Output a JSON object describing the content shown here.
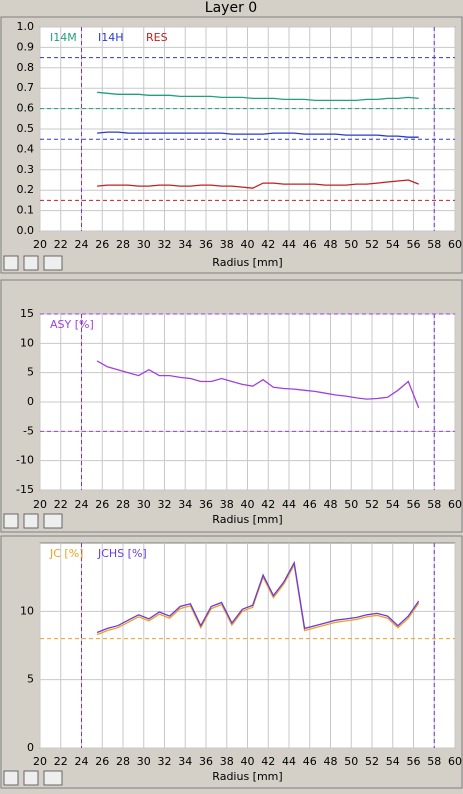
{
  "title": "Layer 0",
  "chart_data": [
    {
      "type": "line",
      "xlabel": "Radius [mm]",
      "xlim": [
        20,
        60
      ],
      "xticks": [
        20,
        22,
        24,
        26,
        28,
        30,
        32,
        34,
        36,
        38,
        40,
        42,
        44,
        46,
        48,
        50,
        52,
        54,
        56,
        58,
        60
      ],
      "ylim": [
        0,
        1
      ],
      "yticks": [
        {
          "value": 0,
          "label": "0.0"
        },
        {
          "value": 0.1,
          "label": "0.1"
        },
        {
          "value": 0.2,
          "label": "0.2"
        },
        {
          "value": 0.3,
          "label": "0.3"
        },
        {
          "value": 0.4,
          "label": "0.4"
        },
        {
          "value": 0.5,
          "label": "0.5"
        },
        {
          "value": 0.6,
          "label": "0.6"
        },
        {
          "value": 0.7,
          "label": "0.7"
        },
        {
          "value": 0.8,
          "label": "0.8"
        },
        {
          "value": 0.9,
          "label": "0.9"
        },
        {
          "value": 1,
          "label": "1.0"
        }
      ],
      "grid": true,
      "vlines": [
        24,
        58
      ],
      "vline_color": "#7b2fd8",
      "hlines": [
        {
          "value": 0.85,
          "color": "#2a3ad0"
        },
        {
          "value": 0.6,
          "color": "#20a080"
        },
        {
          "value": 0.45,
          "color": "#2a3ad0"
        },
        {
          "value": 0.15,
          "color": "#c02020"
        }
      ],
      "x": [
        25.5,
        26.5,
        27.5,
        28.5,
        29.5,
        30.5,
        31.5,
        32.5,
        33.5,
        34.5,
        35.5,
        36.5,
        37.5,
        38.5,
        39.5,
        40.5,
        41.5,
        42.5,
        43.5,
        44.5,
        45.5,
        46.5,
        47.5,
        48.5,
        49.5,
        50.5,
        51.5,
        52.5,
        53.5,
        54.5,
        55.5,
        56.5
      ],
      "series": [
        {
          "name": "I14M",
          "color": "#20a080",
          "values": [
            0.68,
            0.675,
            0.67,
            0.67,
            0.67,
            0.665,
            0.665,
            0.665,
            0.66,
            0.66,
            0.66,
            0.66,
            0.655,
            0.655,
            0.655,
            0.65,
            0.65,
            0.65,
            0.645,
            0.645,
            0.645,
            0.64,
            0.64,
            0.64,
            0.64,
            0.64,
            0.645,
            0.645,
            0.65,
            0.65,
            0.655,
            0.65
          ]
        },
        {
          "name": "I14H",
          "color": "#2a3ad0",
          "values": [
            0.48,
            0.485,
            0.485,
            0.48,
            0.48,
            0.48,
            0.48,
            0.48,
            0.48,
            0.48,
            0.48,
            0.48,
            0.48,
            0.475,
            0.475,
            0.475,
            0.475,
            0.48,
            0.48,
            0.48,
            0.475,
            0.475,
            0.475,
            0.475,
            0.47,
            0.47,
            0.47,
            0.47,
            0.465,
            0.465,
            0.46,
            0.46
          ]
        },
        {
          "name": "RES",
          "color": "#c02020",
          "values": [
            0.22,
            0.225,
            0.225,
            0.225,
            0.22,
            0.22,
            0.225,
            0.225,
            0.22,
            0.22,
            0.225,
            0.225,
            0.22,
            0.22,
            0.215,
            0.21,
            0.235,
            0.235,
            0.23,
            0.23,
            0.23,
            0.23,
            0.225,
            0.225,
            0.225,
            0.23,
            0.23,
            0.235,
            0.24,
            0.245,
            0.25,
            0.23
          ]
        }
      ]
    },
    {
      "type": "line",
      "xlabel": "Radius [mm]",
      "xlim": [
        20,
        60
      ],
      "xticks": [
        20,
        22,
        24,
        26,
        28,
        30,
        32,
        34,
        36,
        38,
        40,
        42,
        44,
        46,
        48,
        50,
        52,
        54,
        56,
        58,
        60
      ],
      "ylim": [
        -15,
        15
      ],
      "yticks": [
        -15,
        -10,
        -5,
        0,
        5,
        10,
        15
      ],
      "grid": true,
      "vlines": [
        24,
        58
      ],
      "vline_color": "#7b2fd8",
      "hlines": [
        {
          "value": 15,
          "color": "#a040e0"
        },
        {
          "value": -5,
          "color": "#a040e0"
        }
      ],
      "x": [
        25.5,
        26.5,
        27.5,
        28.5,
        29.5,
        30.5,
        31.5,
        32.5,
        33.5,
        34.5,
        35.5,
        36.5,
        37.5,
        38.5,
        39.5,
        40.5,
        41.5,
        42.5,
        43.5,
        44.5,
        45.5,
        46.5,
        47.5,
        48.5,
        49.5,
        50.5,
        51.5,
        52.5,
        53.5,
        54.5,
        55.5,
        56.5
      ],
      "series": [
        {
          "name": "ASY [%]",
          "color": "#a040e0",
          "values": [
            7,
            6,
            5.5,
            5,
            4.5,
            5.5,
            4.5,
            4.5,
            4.2,
            4,
            3.5,
            3.5,
            4,
            3.5,
            3,
            2.7,
            3.8,
            2.5,
            2.3,
            2.2,
            2,
            1.8,
            1.5,
            1.2,
            1,
            0.7,
            0.5,
            0.6,
            0.8,
            2,
            3.5,
            -1
          ]
        }
      ]
    },
    {
      "type": "line",
      "xlabel": "Radius [mm]",
      "xlim": [
        20,
        60
      ],
      "xticks": [
        20,
        22,
        24,
        26,
        28,
        30,
        32,
        34,
        36,
        38,
        40,
        42,
        44,
        46,
        48,
        50,
        52,
        54,
        56,
        58,
        60
      ],
      "ylim": [
        0,
        15
      ],
      "yticks": [
        0,
        5,
        10
      ],
      "grid": true,
      "vlines": [
        24,
        58
      ],
      "vline_color": "#7b2fd8",
      "hlines": [
        {
          "value": 8,
          "color": "#f0a020"
        }
      ],
      "x": [
        25.5,
        26.5,
        27.5,
        28.5,
        29.5,
        30.5,
        31.5,
        32.5,
        33.5,
        34.5,
        35.5,
        36.5,
        37.5,
        38.5,
        39.5,
        40.5,
        41.5,
        42.5,
        43.5,
        44.5,
        45.5,
        46.5,
        47.5,
        48.5,
        49.5,
        50.5,
        51.5,
        52.5,
        53.5,
        54.5,
        55.5,
        56.5
      ],
      "series": [
        {
          "name": "JC [%]",
          "color": "#f0a020",
          "values": [
            8.3,
            8.6,
            8.8,
            9.2,
            9.6,
            9.3,
            9.8,
            9.5,
            10.2,
            10.4,
            8.8,
            10.2,
            10.5,
            9.0,
            10,
            10.3,
            12.5,
            11,
            12,
            13.4,
            8.6,
            8.8,
            9.0,
            9.2,
            9.3,
            9.4,
            9.6,
            9.7,
            9.5,
            8.8,
            9.5,
            10.6
          ]
        },
        {
          "name": "JCHS [%]",
          "color": "#6a3ae0",
          "values": [
            8.45,
            8.75,
            8.95,
            9.35,
            9.75,
            9.45,
            9.95,
            9.65,
            10.35,
            10.55,
            8.95,
            10.35,
            10.65,
            9.15,
            10.15,
            10.45,
            12.65,
            11.15,
            12.15,
            13.55,
            8.75,
            8.95,
            9.15,
            9.35,
            9.45,
            9.55,
            9.75,
            9.85,
            9.65,
            8.95,
            9.65,
            10.75
          ]
        }
      ]
    }
  ]
}
